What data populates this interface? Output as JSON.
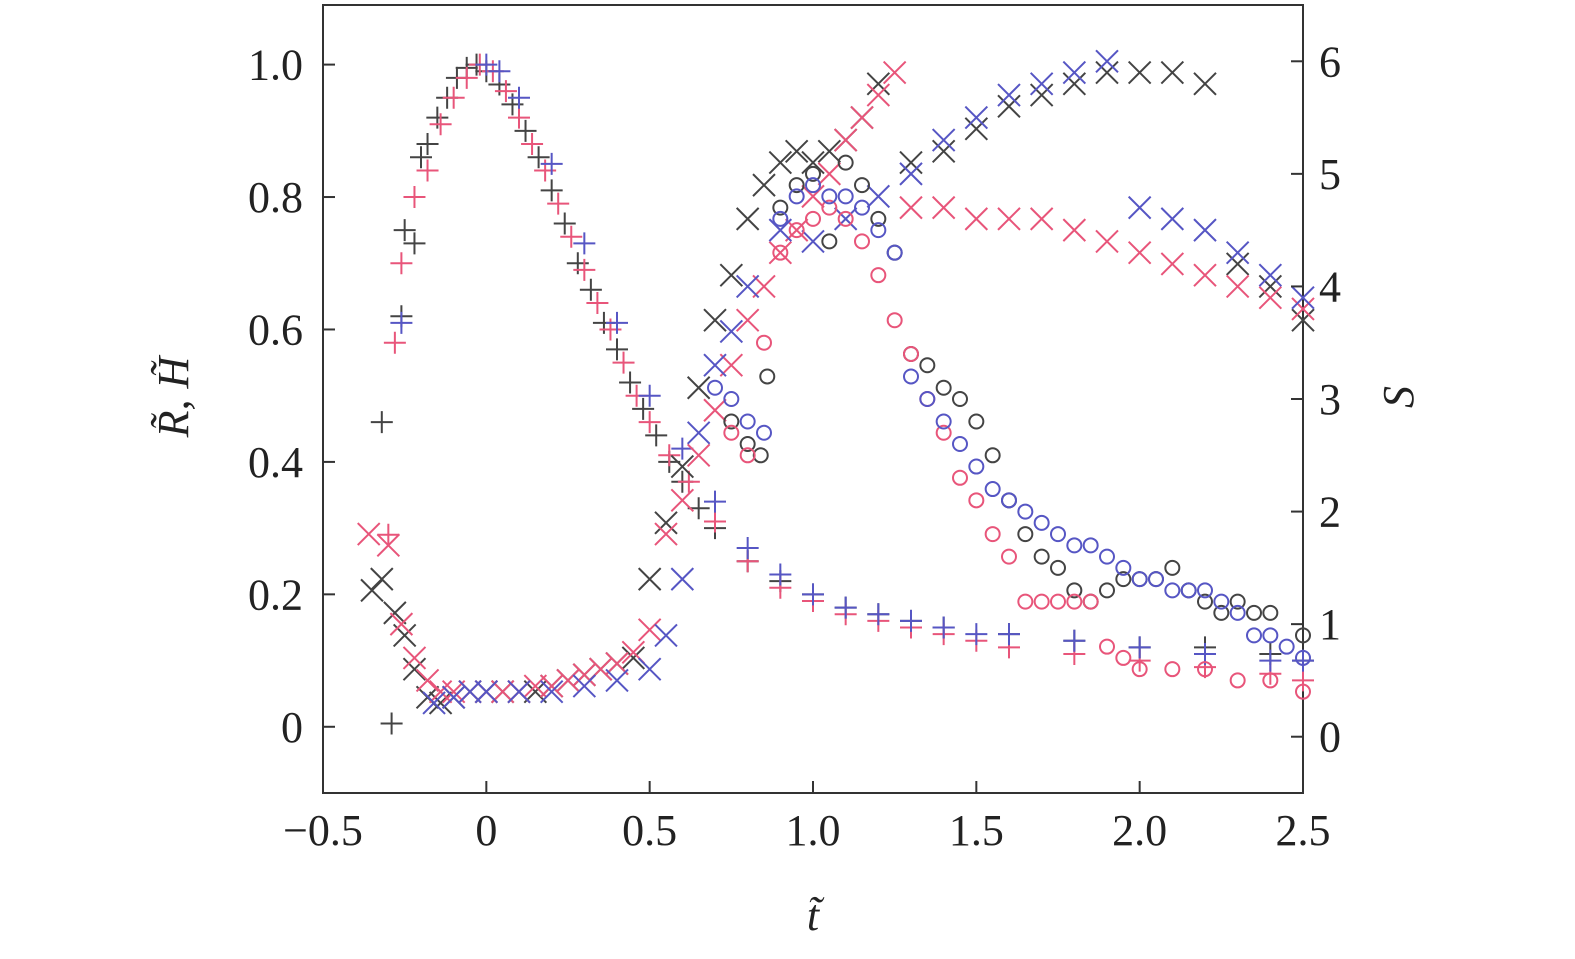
{
  "chart_data": {
    "type": "scatter",
    "title": "",
    "xlabel": "t̃",
    "ylabel_left": "R̃, H̃",
    "ylabel_right": "S",
    "xlim": [
      -0.5,
      2.5
    ],
    "ylim_left": [
      -0.1,
      1.09
    ],
    "ylim_right": [
      -0.5,
      6.5
    ],
    "x_ticks": [
      "−0.5",
      "0",
      "0.5",
      "1.0",
      "1.5",
      "2.0",
      "2.5"
    ],
    "x_tick_values": [
      -0.5,
      0,
      0.5,
      1.0,
      1.5,
      2.0,
      2.5
    ],
    "y_left_ticks": [
      "0",
      "0.2",
      "0.4",
      "0.6",
      "0.8",
      "1.0"
    ],
    "y_left_tick_values": [
      0,
      0.2,
      0.4,
      0.6,
      0.8,
      1.0
    ],
    "y_right_ticks": [
      "0",
      "1",
      "2",
      "3",
      "4",
      "5",
      "6"
    ],
    "y_right_tick_values": [
      0,
      1,
      2,
      3,
      4,
      5,
      6
    ],
    "grid": false,
    "legend": "none",
    "colors": {
      "black": "#444444",
      "red": "#e8557a",
      "blue": "#5656c4"
    },
    "series": [
      {
        "marker": "plus",
        "color": "#444444",
        "axis": "left",
        "x": [
          -0.32,
          -0.29,
          -0.26,
          -0.25,
          -0.22,
          -0.2,
          -0.18,
          -0.15,
          -0.12,
          -0.09,
          -0.06,
          -0.03,
          0.0,
          0.04,
          0.08,
          0.12,
          0.16,
          0.2,
          0.24,
          0.28,
          0.32,
          0.36,
          0.4,
          0.44,
          0.48,
          0.52,
          0.56,
          0.6,
          0.65,
          0.7,
          0.8,
          0.9,
          1.0,
          1.1,
          1.2,
          1.3,
          1.4,
          1.6,
          1.8,
          2.0,
          2.2,
          2.4,
          2.5
        ],
        "y": [
          0.46,
          0.005,
          0.62,
          0.75,
          0.73,
          0.86,
          0.88,
          0.92,
          0.95,
          0.98,
          0.995,
          1.0,
          0.99,
          0.97,
          0.94,
          0.9,
          0.86,
          0.81,
          0.76,
          0.7,
          0.66,
          0.61,
          0.57,
          0.52,
          0.48,
          0.44,
          0.4,
          0.37,
          0.33,
          0.3,
          0.25,
          0.22,
          0.2,
          0.18,
          0.17,
          0.16,
          0.15,
          0.14,
          0.13,
          0.12,
          0.12,
          0.11,
          0.1
        ]
      },
      {
        "marker": "plus",
        "color": "#e8557a",
        "axis": "left",
        "x": [
          -0.3,
          -0.28,
          -0.26,
          -0.22,
          -0.18,
          -0.14,
          -0.1,
          -0.06,
          -0.02,
          0.02,
          0.06,
          0.1,
          0.14,
          0.18,
          0.22,
          0.26,
          0.3,
          0.34,
          0.38,
          0.42,
          0.46,
          0.5,
          0.56,
          0.62,
          0.7,
          0.8,
          0.9,
          1.0,
          1.1,
          1.2,
          1.3,
          1.4,
          1.5,
          1.6,
          1.8,
          2.0,
          2.2,
          2.4,
          2.5
        ],
        "y": [
          0.29,
          0.58,
          0.7,
          0.8,
          0.84,
          0.91,
          0.95,
          0.98,
          1.0,
          0.99,
          0.96,
          0.92,
          0.88,
          0.84,
          0.79,
          0.74,
          0.69,
          0.64,
          0.6,
          0.55,
          0.5,
          0.46,
          0.41,
          0.37,
          0.31,
          0.25,
          0.21,
          0.19,
          0.17,
          0.16,
          0.15,
          0.14,
          0.13,
          0.12,
          0.11,
          0.1,
          0.09,
          0.08,
          0.07
        ]
      },
      {
        "marker": "plus",
        "color": "#5656c4",
        "axis": "left",
        "x": [
          -0.26,
          0.0,
          0.04,
          0.1,
          0.2,
          0.3,
          0.4,
          0.5,
          0.6,
          0.7,
          0.8,
          0.9,
          1.0,
          1.1,
          1.2,
          1.3,
          1.4,
          1.5,
          1.6,
          1.8,
          2.0,
          2.2,
          2.4,
          2.5
        ],
        "y": [
          0.61,
          1.0,
          0.99,
          0.95,
          0.85,
          0.73,
          0.61,
          0.5,
          0.42,
          0.34,
          0.27,
          0.23,
          0.2,
          0.18,
          0.17,
          0.16,
          0.15,
          0.14,
          0.14,
          0.13,
          0.12,
          0.11,
          0.1,
          0.1
        ]
      },
      {
        "marker": "cross",
        "color": "#444444",
        "axis": "right",
        "x": [
          -0.35,
          -0.32,
          -0.28,
          -0.25,
          -0.22,
          -0.18,
          -0.14,
          -0.1,
          -0.05,
          0.0,
          0.05,
          0.1,
          0.15,
          0.2,
          0.25,
          0.3,
          0.35,
          0.4,
          0.45,
          0.5,
          0.55,
          0.6,
          0.65,
          0.7,
          0.75,
          0.8,
          0.85,
          0.9,
          0.95,
          1.0,
          1.05,
          1.1,
          1.15,
          1.2,
          1.3,
          1.4,
          1.5,
          1.6,
          1.7,
          1.8,
          1.9,
          2.0,
          2.1,
          2.2,
          2.3,
          2.4,
          2.5
        ],
        "y": [
          1.3,
          1.4,
          1.1,
          0.9,
          0.6,
          0.35,
          0.3,
          0.35,
          0.4,
          0.4,
          0.4,
          0.4,
          0.4,
          0.45,
          0.5,
          0.55,
          0.6,
          0.65,
          0.7,
          1.4,
          1.9,
          2.4,
          3.1,
          3.7,
          4.1,
          4.6,
          4.9,
          5.1,
          5.2,
          5.1,
          5.2,
          5.3,
          5.5,
          5.8,
          5.1,
          5.2,
          5.4,
          5.6,
          5.7,
          5.8,
          5.9,
          5.9,
          5.9,
          5.8,
          4.2,
          4.0,
          3.7
        ]
      },
      {
        "marker": "cross",
        "color": "#e8557a",
        "axis": "right",
        "x": [
          -0.36,
          -0.3,
          -0.26,
          -0.22,
          -0.18,
          -0.14,
          -0.1,
          -0.05,
          0.0,
          0.05,
          0.1,
          0.15,
          0.2,
          0.25,
          0.3,
          0.35,
          0.4,
          0.45,
          0.5,
          0.55,
          0.6,
          0.65,
          0.7,
          0.75,
          0.8,
          0.85,
          0.9,
          0.95,
          1.0,
          1.05,
          1.1,
          1.15,
          1.2,
          1.25,
          1.3,
          1.4,
          1.5,
          1.6,
          1.7,
          1.8,
          1.9,
          2.0,
          2.1,
          2.2,
          2.3,
          2.4,
          2.5
        ],
        "y": [
          1.8,
          1.7,
          1.0,
          0.7,
          0.5,
          0.4,
          0.4,
          0.4,
          0.4,
          0.4,
          0.4,
          0.45,
          0.45,
          0.5,
          0.55,
          0.6,
          0.65,
          0.75,
          0.95,
          1.8,
          2.1,
          2.5,
          2.9,
          3.3,
          3.7,
          4.0,
          4.3,
          4.5,
          4.8,
          5.0,
          5.3,
          5.5,
          5.7,
          5.9,
          4.7,
          4.7,
          4.6,
          4.6,
          4.6,
          4.5,
          4.4,
          4.3,
          4.2,
          4.1,
          4.0,
          3.9,
          3.8
        ]
      },
      {
        "marker": "cross",
        "color": "#5656c4",
        "axis": "right",
        "x": [
          -0.16,
          -0.1,
          -0.05,
          0.0,
          0.1,
          0.2,
          0.3,
          0.4,
          0.5,
          0.55,
          0.6,
          0.65,
          0.7,
          0.75,
          0.8,
          0.9,
          1.0,
          1.1,
          1.2,
          1.3,
          1.4,
          1.5,
          1.6,
          1.7,
          1.8,
          1.9,
          2.0,
          2.1,
          2.2,
          2.3,
          2.4,
          2.5
        ],
        "y": [
          0.3,
          0.35,
          0.4,
          0.4,
          0.4,
          0.4,
          0.45,
          0.5,
          0.6,
          0.9,
          1.4,
          2.7,
          3.3,
          3.6,
          4.0,
          4.5,
          4.4,
          4.6,
          4.8,
          5.0,
          5.3,
          5.5,
          5.7,
          5.8,
          5.9,
          6.0,
          4.7,
          4.6,
          4.5,
          4.3,
          4.1,
          3.9
        ]
      },
      {
        "marker": "circle",
        "color": "#444444",
        "axis": "right",
        "x": [
          0.75,
          0.8,
          0.84,
          0.86,
          0.9,
          0.95,
          1.0,
          1.05,
          1.1,
          1.15,
          1.2,
          1.25,
          1.3,
          1.35,
          1.4,
          1.45,
          1.5,
          1.55,
          1.6,
          1.65,
          1.7,
          1.75,
          1.8,
          1.85,
          1.9,
          1.95,
          2.0,
          2.05,
          2.1,
          2.15,
          2.2,
          2.25,
          2.3,
          2.35,
          2.4,
          2.5
        ],
        "y": [
          2.8,
          2.6,
          2.5,
          3.2,
          4.7,
          4.9,
          5.0,
          4.4,
          5.1,
          4.9,
          4.6,
          4.3,
          3.4,
          3.3,
          3.1,
          3.0,
          2.8,
          2.5,
          2.1,
          1.8,
          1.6,
          1.5,
          1.3,
          1.2,
          1.3,
          1.4,
          1.4,
          1.4,
          1.5,
          1.3,
          1.2,
          1.1,
          1.2,
          1.1,
          1.1,
          0.9
        ]
      },
      {
        "marker": "circle",
        "color": "#e8557a",
        "axis": "right",
        "x": [
          0.75,
          0.8,
          0.85,
          0.9,
          0.95,
          1.0,
          1.05,
          1.1,
          1.15,
          1.2,
          1.25,
          1.3,
          1.35,
          1.4,
          1.45,
          1.5,
          1.55,
          1.6,
          1.65,
          1.7,
          1.75,
          1.8,
          1.85,
          1.9,
          1.95,
          2.0,
          2.1,
          2.2,
          2.3,
          2.4,
          2.5
        ],
        "y": [
          2.7,
          2.5,
          3.5,
          4.3,
          4.5,
          4.6,
          4.7,
          4.6,
          4.4,
          4.1,
          3.7,
          3.4,
          3.0,
          2.7,
          2.3,
          2.1,
          1.8,
          1.6,
          1.2,
          1.2,
          1.2,
          1.2,
          1.2,
          0.8,
          0.7,
          0.6,
          0.6,
          0.6,
          0.5,
          0.5,
          0.4
        ]
      },
      {
        "marker": "circle",
        "color": "#5656c4",
        "axis": "right",
        "x": [
          0.7,
          0.75,
          0.8,
          0.85,
          0.9,
          0.95,
          1.0,
          1.05,
          1.1,
          1.15,
          1.2,
          1.25,
          1.3,
          1.35,
          1.4,
          1.45,
          1.5,
          1.55,
          1.6,
          1.65,
          1.7,
          1.75,
          1.8,
          1.85,
          1.9,
          1.95,
          2.0,
          2.05,
          2.1,
          2.15,
          2.2,
          2.25,
          2.3,
          2.35,
          2.4,
          2.45,
          2.5
        ],
        "y": [
          3.1,
          3.0,
          2.8,
          2.7,
          4.6,
          4.8,
          4.9,
          4.8,
          4.8,
          4.7,
          4.5,
          4.3,
          3.2,
          3.0,
          2.8,
          2.6,
          2.4,
          2.2,
          2.1,
          2.0,
          1.9,
          1.8,
          1.7,
          1.7,
          1.6,
          1.5,
          1.4,
          1.4,
          1.3,
          1.3,
          1.3,
          1.2,
          1.1,
          0.9,
          0.9,
          0.8,
          0.7
        ]
      }
    ]
  }
}
